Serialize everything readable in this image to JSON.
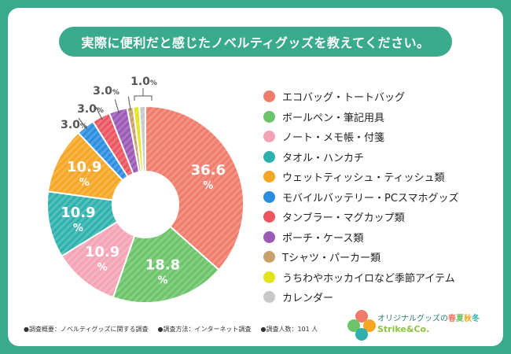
{
  "title": "実際に便利だと感じたノベルティグッズを教えてください。",
  "chart_data": {
    "type": "pie",
    "subtype": "donut",
    "unit": "%",
    "categories": [
      "エコバッグ・トートバッグ",
      "ボールペン・筆記用具",
      "ノート・メモ帳・付箋",
      "タオル・ハンカチ",
      "ウェットティッシュ・ティッシュ類",
      "モバイルバッテリー・PCスマホグッズ",
      "タンブラー・マグカップ類",
      "ポーチ・ケース類",
      "Tシャツ・パーカー類",
      "うちわやホッカイロなど季節アイテム",
      "カレンダー"
    ],
    "values": [
      36.6,
      18.8,
      10.9,
      10.9,
      10.9,
      3.0,
      3.0,
      3.0,
      1.0,
      1.0,
      1.0
    ],
    "colors": [
      "#ef7b6a",
      "#6cc46a",
      "#f3a3b5",
      "#2eb1ad",
      "#f5a623",
      "#2b8de0",
      "#ea5560",
      "#9b59b6",
      "#c8a06a",
      "#e3e31a",
      "#c8c8c8"
    ],
    "data_labels": [
      "36.6",
      "18.8",
      "10.9",
      "10.9",
      "10.9",
      "3.0",
      "3.0",
      "3.0",
      "1.0",
      "",
      ""
    ],
    "legend_position": "right"
  },
  "footer": {
    "overview": "●調査概要：ノベルティグッズに関する調査",
    "method": "●調査方法：インターネット調査",
    "respondents": "●調査人数：101 人"
  },
  "brand": {
    "text": "オリジナルグッズの",
    "seasons": [
      "春",
      "夏",
      "秋",
      "冬"
    ],
    "logo": "Strike&Co."
  }
}
